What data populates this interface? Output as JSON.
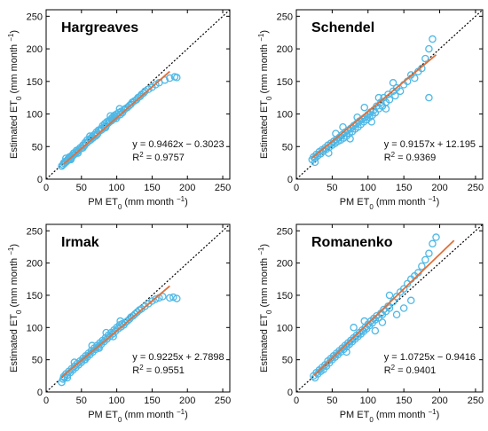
{
  "chart_data": [
    {
      "type": "scatter",
      "title": "Hargreaves",
      "xlabel": "PM ET0 (mm month −1)",
      "ylabel": "Estimated ET0 (mm month −1)",
      "xlim": [
        0,
        260
      ],
      "ylim": [
        0,
        260
      ],
      "xticks": [
        "0",
        "50",
        "100",
        "150",
        "200",
        "250"
      ],
      "yticks": [
        "0",
        "50",
        "100",
        "150",
        "200",
        "250"
      ],
      "equation": "y = 0.9462x − 0.3023",
      "r2": "R2 = 0.9757",
      "fit": {
        "slope": 0.9462,
        "intercept": -0.3023,
        "x_range": [
          25,
          175
        ]
      },
      "identity_line": true,
      "colors": {
        "points": "#4fb8e6",
        "fit": "#e0703a",
        "identity": "#000000"
      },
      "points": [
        [
          22,
          20
        ],
        [
          24,
          22
        ],
        [
          25,
          25
        ],
        [
          26,
          24
        ],
        [
          27,
          27
        ],
        [
          28,
          26
        ],
        [
          30,
          28
        ],
        [
          31,
          31
        ],
        [
          32,
          30
        ],
        [
          33,
          34
        ],
        [
          34,
          31
        ],
        [
          35,
          35
        ],
        [
          36,
          33
        ],
        [
          37,
          37
        ],
        [
          38,
          36
        ],
        [
          39,
          40
        ],
        [
          40,
          38
        ],
        [
          42,
          40
        ],
        [
          43,
          44
        ],
        [
          44,
          42
        ],
        [
          46,
          45
        ],
        [
          48,
          48
        ],
        [
          50,
          47
        ],
        [
          52,
          52
        ],
        [
          54,
          51
        ],
        [
          55,
          56
        ],
        [
          57,
          55
        ],
        [
          58,
          60
        ],
        [
          60,
          58
        ],
        [
          62,
          62
        ],
        [
          63,
          60
        ],
        [
          65,
          65
        ],
        [
          66,
          63
        ],
        [
          68,
          68
        ],
        [
          70,
          66
        ],
        [
          71,
          72
        ],
        [
          73,
          70
        ],
        [
          74,
          75
        ],
        [
          76,
          74
        ],
        [
          78,
          78
        ],
        [
          79,
          76
        ],
        [
          80,
          82
        ],
        [
          82,
          80
        ],
        [
          83,
          85
        ],
        [
          85,
          82
        ],
        [
          86,
          88
        ],
        [
          88,
          86
        ],
        [
          89,
          90
        ],
        [
          90,
          88
        ],
        [
          92,
          92
        ],
        [
          93,
          90
        ],
        [
          94,
          95
        ],
        [
          96,
          93
        ],
        [
          97,
          98
        ],
        [
          98,
          96
        ],
        [
          100,
          100
        ],
        [
          101,
          97
        ],
        [
          103,
          102
        ],
        [
          105,
          99
        ],
        [
          106,
          104
        ],
        [
          108,
          102
        ],
        [
          110,
          106
        ],
        [
          112,
          108
        ],
        [
          115,
          110
        ],
        [
          118,
          113
        ],
        [
          120,
          115
        ],
        [
          122,
          118
        ],
        [
          125,
          120
        ],
        [
          128,
          122
        ],
        [
          130,
          125
        ],
        [
          133,
          127
        ],
        [
          135,
          130
        ],
        [
          138,
          132
        ],
        [
          140,
          135
        ],
        [
          145,
          138
        ],
        [
          150,
          141
        ],
        [
          155,
          145
        ],
        [
          160,
          148
        ],
        [
          168,
          152
        ],
        [
          175,
          155
        ],
        [
          182,
          157
        ],
        [
          185,
          156
        ],
        [
          28,
          32
        ],
        [
          35,
          30
        ],
        [
          45,
          40
        ],
        [
          52,
          48
        ],
        [
          62,
          66
        ],
        [
          72,
          68
        ],
        [
          84,
          79
        ],
        [
          91,
          97
        ],
        [
          99,
          93
        ],
        [
          104,
          108
        ]
      ]
    },
    {
      "type": "scatter",
      "title": "Schendel",
      "xlabel": "PM ET0 (mm month −1)",
      "ylabel": "Estimated ET0 (mm month −1)",
      "xlim": [
        0,
        260
      ],
      "ylim": [
        0,
        260
      ],
      "xticks": [
        "0",
        "50",
        "100",
        "150",
        "200",
        "250"
      ],
      "yticks": [
        "0",
        "50",
        "100",
        "150",
        "200",
        "250"
      ],
      "equation": "y = 0.9157x + 12.195",
      "r2": "R2 = 0.9369",
      "fit": {
        "slope": 0.9157,
        "intercept": 12.195,
        "x_range": [
          22,
          195
        ]
      },
      "identity_line": true,
      "colors": {
        "points": "#4fb8e6",
        "fit": "#e0703a",
        "identity": "#000000"
      },
      "points": [
        [
          22,
          30
        ],
        [
          24,
          34
        ],
        [
          26,
          32
        ],
        [
          28,
          38
        ],
        [
          30,
          36
        ],
        [
          32,
          42
        ],
        [
          34,
          39
        ],
        [
          36,
          45
        ],
        [
          38,
          43
        ],
        [
          40,
          48
        ],
        [
          42,
          46
        ],
        [
          44,
          52
        ],
        [
          46,
          49
        ],
        [
          48,
          55
        ],
        [
          50,
          52
        ],
        [
          52,
          58
        ],
        [
          54,
          55
        ],
        [
          56,
          61
        ],
        [
          58,
          58
        ],
        [
          60,
          64
        ],
        [
          62,
          60
        ],
        [
          64,
          68
        ],
        [
          66,
          63
        ],
        [
          68,
          72
        ],
        [
          70,
          66
        ],
        [
          72,
          75
        ],
        [
          74,
          70
        ],
        [
          76,
          78
        ],
        [
          78,
          73
        ],
        [
          80,
          82
        ],
        [
          82,
          77
        ],
        [
          84,
          85
        ],
        [
          86,
          80
        ],
        [
          88,
          89
        ],
        [
          90,
          84
        ],
        [
          92,
          92
        ],
        [
          94,
          88
        ],
        [
          96,
          95
        ],
        [
          98,
          91
        ],
        [
          100,
          99
        ],
        [
          102,
          95
        ],
        [
          104,
          103
        ],
        [
          106,
          98
        ],
        [
          108,
          106
        ],
        [
          110,
          102
        ],
        [
          112,
          112
        ],
        [
          115,
          108
        ],
        [
          118,
          118
        ],
        [
          120,
          112
        ],
        [
          122,
          125
        ],
        [
          125,
          118
        ],
        [
          128,
          130
        ],
        [
          130,
          122
        ],
        [
          135,
          135
        ],
        [
          138,
          128
        ],
        [
          140,
          140
        ],
        [
          145,
          135
        ],
        [
          150,
          145
        ],
        [
          155,
          150
        ],
        [
          160,
          160
        ],
        [
          165,
          155
        ],
        [
          170,
          165
        ],
        [
          175,
          170
        ],
        [
          180,
          185
        ],
        [
          185,
          200
        ],
        [
          190,
          215
        ],
        [
          185,
          125
        ],
        [
          26,
          26
        ],
        [
          45,
          40
        ],
        [
          55,
          70
        ],
        [
          65,
          80
        ],
        [
          75,
          62
        ],
        [
          85,
          95
        ],
        [
          95,
          110
        ],
        [
          105,
          88
        ],
        [
          115,
          125
        ],
        [
          125,
          108
        ],
        [
          135,
          148
        ]
      ]
    },
    {
      "type": "scatter",
      "title": "Irmak",
      "xlabel": "PM ET0 (mm month −1)",
      "ylabel": "Estimated ET0 (mm month −1)",
      "xlim": [
        0,
        260
      ],
      "ylim": [
        0,
        260
      ],
      "xticks": [
        "0",
        "50",
        "100",
        "150",
        "200",
        "250"
      ],
      "yticks": [
        "0",
        "50",
        "100",
        "150",
        "200",
        "250"
      ],
      "equation": "y = 0.9225x + 2.7898",
      "r2": "R2 = 0.9551",
      "fit": {
        "slope": 0.9225,
        "intercept": 2.7898,
        "x_range": [
          22,
          175
        ]
      },
      "identity_line": true,
      "colors": {
        "points": "#4fb8e6",
        "fit": "#e0703a",
        "identity": "#000000"
      },
      "points": [
        [
          22,
          15
        ],
        [
          24,
          20
        ],
        [
          25,
          24
        ],
        [
          26,
          22
        ],
        [
          28,
          28
        ],
        [
          30,
          26
        ],
        [
          32,
          32
        ],
        [
          34,
          30
        ],
        [
          36,
          36
        ],
        [
          38,
          34
        ],
        [
          40,
          40
        ],
        [
          42,
          38
        ],
        [
          44,
          44
        ],
        [
          46,
          42
        ],
        [
          48,
          48
        ],
        [
          50,
          46
        ],
        [
          52,
          52
        ],
        [
          54,
          50
        ],
        [
          56,
          56
        ],
        [
          58,
          54
        ],
        [
          60,
          60
        ],
        [
          62,
          58
        ],
        [
          64,
          64
        ],
        [
          66,
          62
        ],
        [
          68,
          68
        ],
        [
          70,
          66
        ],
        [
          72,
          72
        ],
        [
          74,
          70
        ],
        [
          76,
          76
        ],
        [
          78,
          74
        ],
        [
          80,
          80
        ],
        [
          82,
          78
        ],
        [
          84,
          84
        ],
        [
          86,
          82
        ],
        [
          88,
          88
        ],
        [
          90,
          86
        ],
        [
          92,
          92
        ],
        [
          94,
          90
        ],
        [
          96,
          96
        ],
        [
          98,
          94
        ],
        [
          100,
          100
        ],
        [
          102,
          98
        ],
        [
          104,
          104
        ],
        [
          106,
          101
        ],
        [
          108,
          106
        ],
        [
          110,
          104
        ],
        [
          112,
          108
        ],
        [
          115,
          110
        ],
        [
          118,
          113
        ],
        [
          120,
          116
        ],
        [
          123,
          118
        ],
        [
          126,
          121
        ],
        [
          129,
          124
        ],
        [
          132,
          127
        ],
        [
          135,
          129
        ],
        [
          140,
          133
        ],
        [
          145,
          137
        ],
        [
          150,
          141
        ],
        [
          155,
          144
        ],
        [
          160,
          146
        ],
        [
          165,
          148
        ],
        [
          175,
          146
        ],
        [
          180,
          147
        ],
        [
          185,
          145
        ],
        [
          30,
          22
        ],
        [
          40,
          46
        ],
        [
          55,
          50
        ],
        [
          65,
          72
        ],
        [
          75,
          68
        ],
        [
          85,
          92
        ],
        [
          95,
          86
        ],
        [
          105,
          110
        ]
      ]
    },
    {
      "type": "scatter",
      "title": "Romanenko",
      "xlabel": "PM ET0 (mm month −1)",
      "ylabel": "Estimated ET0 (mm month −1)",
      "xlim": [
        0,
        260
      ],
      "ylim": [
        0,
        260
      ],
      "xticks": [
        "0",
        "50",
        "100",
        "150",
        "200",
        "250"
      ],
      "yticks": [
        "0",
        "50",
        "100",
        "150",
        "200",
        "250"
      ],
      "equation": "y = 1.0725x − 0.9416",
      "r2": "R2 = 0.9401",
      "fit": {
        "slope": 1.0725,
        "intercept": -0.9416,
        "x_range": [
          25,
          220
        ]
      },
      "identity_line": true,
      "colors": {
        "points": "#4fb8e6",
        "fit": "#e0703a",
        "identity": "#000000"
      },
      "points": [
        [
          24,
          25
        ],
        [
          26,
          22
        ],
        [
          28,
          30
        ],
        [
          30,
          28
        ],
        [
          32,
          34
        ],
        [
          34,
          32
        ],
        [
          36,
          38
        ],
        [
          38,
          35
        ],
        [
          40,
          42
        ],
        [
          42,
          40
        ],
        [
          44,
          48
        ],
        [
          46,
          45
        ],
        [
          48,
          52
        ],
        [
          50,
          50
        ],
        [
          52,
          56
        ],
        [
          54,
          54
        ],
        [
          56,
          60
        ],
        [
          58,
          58
        ],
        [
          60,
          64
        ],
        [
          62,
          62
        ],
        [
          64,
          68
        ],
        [
          66,
          66
        ],
        [
          68,
          72
        ],
        [
          70,
          70
        ],
        [
          72,
          76
        ],
        [
          74,
          74
        ],
        [
          76,
          80
        ],
        [
          78,
          78
        ],
        [
          80,
          84
        ],
        [
          82,
          82
        ],
        [
          84,
          88
        ],
        [
          86,
          86
        ],
        [
          88,
          92
        ],
        [
          90,
          90
        ],
        [
          92,
          96
        ],
        [
          94,
          94
        ],
        [
          96,
          100
        ],
        [
          98,
          98
        ],
        [
          100,
          105
        ],
        [
          102,
          103
        ],
        [
          104,
          110
        ],
        [
          106,
          107
        ],
        [
          108,
          114
        ],
        [
          110,
          112
        ],
        [
          112,
          118
        ],
        [
          115,
          115
        ],
        [
          118,
          122
        ],
        [
          120,
          120
        ],
        [
          122,
          128
        ],
        [
          125,
          125
        ],
        [
          128,
          133
        ],
        [
          130,
          130
        ],
        [
          135,
          140
        ],
        [
          140,
          148
        ],
        [
          145,
          155
        ],
        [
          150,
          160
        ],
        [
          155,
          168
        ],
        [
          160,
          175
        ],
        [
          165,
          180
        ],
        [
          170,
          185
        ],
        [
          175,
          195
        ],
        [
          180,
          205
        ],
        [
          185,
          215
        ],
        [
          190,
          230
        ],
        [
          195,
          240
        ],
        [
          150,
          130
        ],
        [
          110,
          95
        ],
        [
          95,
          110
        ],
        [
          70,
          62
        ],
        [
          80,
          100
        ],
        [
          120,
          108
        ],
        [
          140,
          120
        ],
        [
          160,
          142
        ],
        [
          130,
          150
        ]
      ]
    }
  ]
}
